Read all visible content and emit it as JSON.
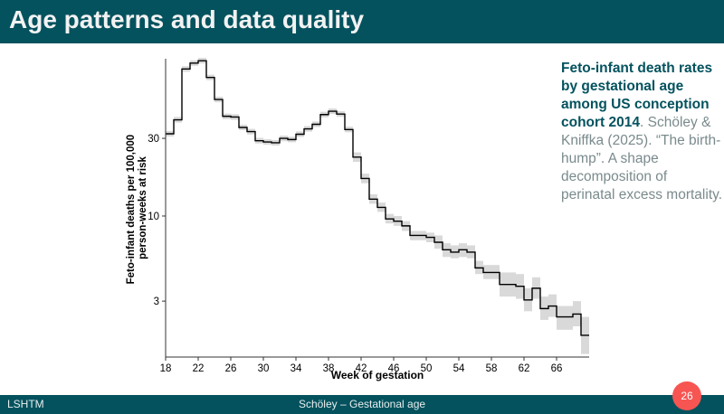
{
  "header": {
    "title": "Age patterns and data quality"
  },
  "caption": {
    "bold": "Feto-infant death rates by gestational age among US conception cohort 2014",
    "bold_end": ".",
    "text": " Schöley & Kniffka (2025). “The birth-hump”. A shape decomposition of perinatal excess mortality."
  },
  "footer": {
    "left": "LSHTM",
    "center": "Schöley – Gestational age",
    "page": "26"
  },
  "colors": {
    "brand": "#03525e",
    "accent": "#f75552",
    "line": "#000000",
    "ci": "#d9d9d9"
  },
  "chart_data": {
    "type": "line",
    "step": true,
    "xlabel": "Week of gestation",
    "ylabel": "Feto-infant deaths per 100,000\nperson-weeks at risk",
    "ylabel_lines": [
      "Feto-infant deaths per 100,000",
      "person-weeks at risk"
    ],
    "xlim": [
      18,
      70
    ],
    "ylim": [
      1.36,
      92.5
    ],
    "yscale": "log",
    "xticks": [
      18,
      22,
      26,
      30,
      34,
      38,
      42,
      46,
      50,
      54,
      58,
      62,
      66
    ],
    "yticks": [
      3,
      10,
      30
    ],
    "grid": false,
    "x": [
      18,
      19,
      20,
      21,
      22,
      23,
      24,
      25,
      26,
      27,
      28,
      29,
      30,
      31,
      32,
      33,
      34,
      35,
      36,
      37,
      38,
      39,
      40,
      41,
      42,
      43,
      44,
      45,
      46,
      47,
      48,
      49,
      50,
      51,
      52,
      53,
      54,
      55,
      56,
      57,
      58,
      59,
      60,
      61,
      62,
      63,
      64,
      65,
      66,
      67,
      68,
      69
    ],
    "values": [
      32,
      39,
      80,
      87,
      90,
      71,
      52,
      41,
      40.6,
      35,
      33,
      29,
      28.5,
      28.2,
      30,
      29.5,
      31.8,
      34.3,
      36.6,
      42,
      44,
      42.3,
      34,
      23,
      17,
      12.7,
      11.3,
      9.6,
      9.3,
      8.7,
      7.6,
      7.6,
      7.4,
      6.9,
      6.2,
      6.0,
      6.2,
      6.0,
      4.8,
      4.5,
      4.5,
      3.8,
      3.8,
      3.7,
      3.05,
      3.6,
      2.7,
      2.8,
      2.4,
      2.4,
      2.5,
      1.85
    ],
    "ci_lower": [
      30.8,
      37.5,
      76.9,
      83.7,
      86.5,
      68.3,
      50,
      39.4,
      39,
      33.7,
      31.7,
      27.9,
      27.4,
      27.1,
      28.8,
      28.4,
      30.6,
      33,
      35.2,
      40.4,
      42.3,
      40.7,
      32.7,
      21.5,
      15.9,
      11.9,
      10.6,
      9,
      8.7,
      8.1,
      7.1,
      7.1,
      6.9,
      6.3,
      5.6,
      5.5,
      5.6,
      5.5,
      4.4,
      4.1,
      4.1,
      3.2,
      3.2,
      3.1,
      2.6,
      3.1,
      2.3,
      2.4,
      2,
      2,
      2.1,
      1.42
    ],
    "ci_upper": [
      33.3,
      40.6,
      83.2,
      90.5,
      93.6,
      73.8,
      54.1,
      42.6,
      42.2,
      36.4,
      34.3,
      30.2,
      29.6,
      29.3,
      31.2,
      30.7,
      33.1,
      35.7,
      38.1,
      43.7,
      45.8,
      44,
      35.4,
      24.6,
      18.2,
      13.6,
      12.1,
      10.3,
      10,
      9.3,
      8.1,
      8.1,
      7.9,
      7.6,
      6.8,
      6.6,
      6.8,
      6.6,
      5.3,
      5,
      5,
      4.5,
      4.5,
      4.4,
      3.6,
      4.2,
      3.2,
      3.3,
      2.8,
      2.8,
      3,
      2.4
    ]
  }
}
